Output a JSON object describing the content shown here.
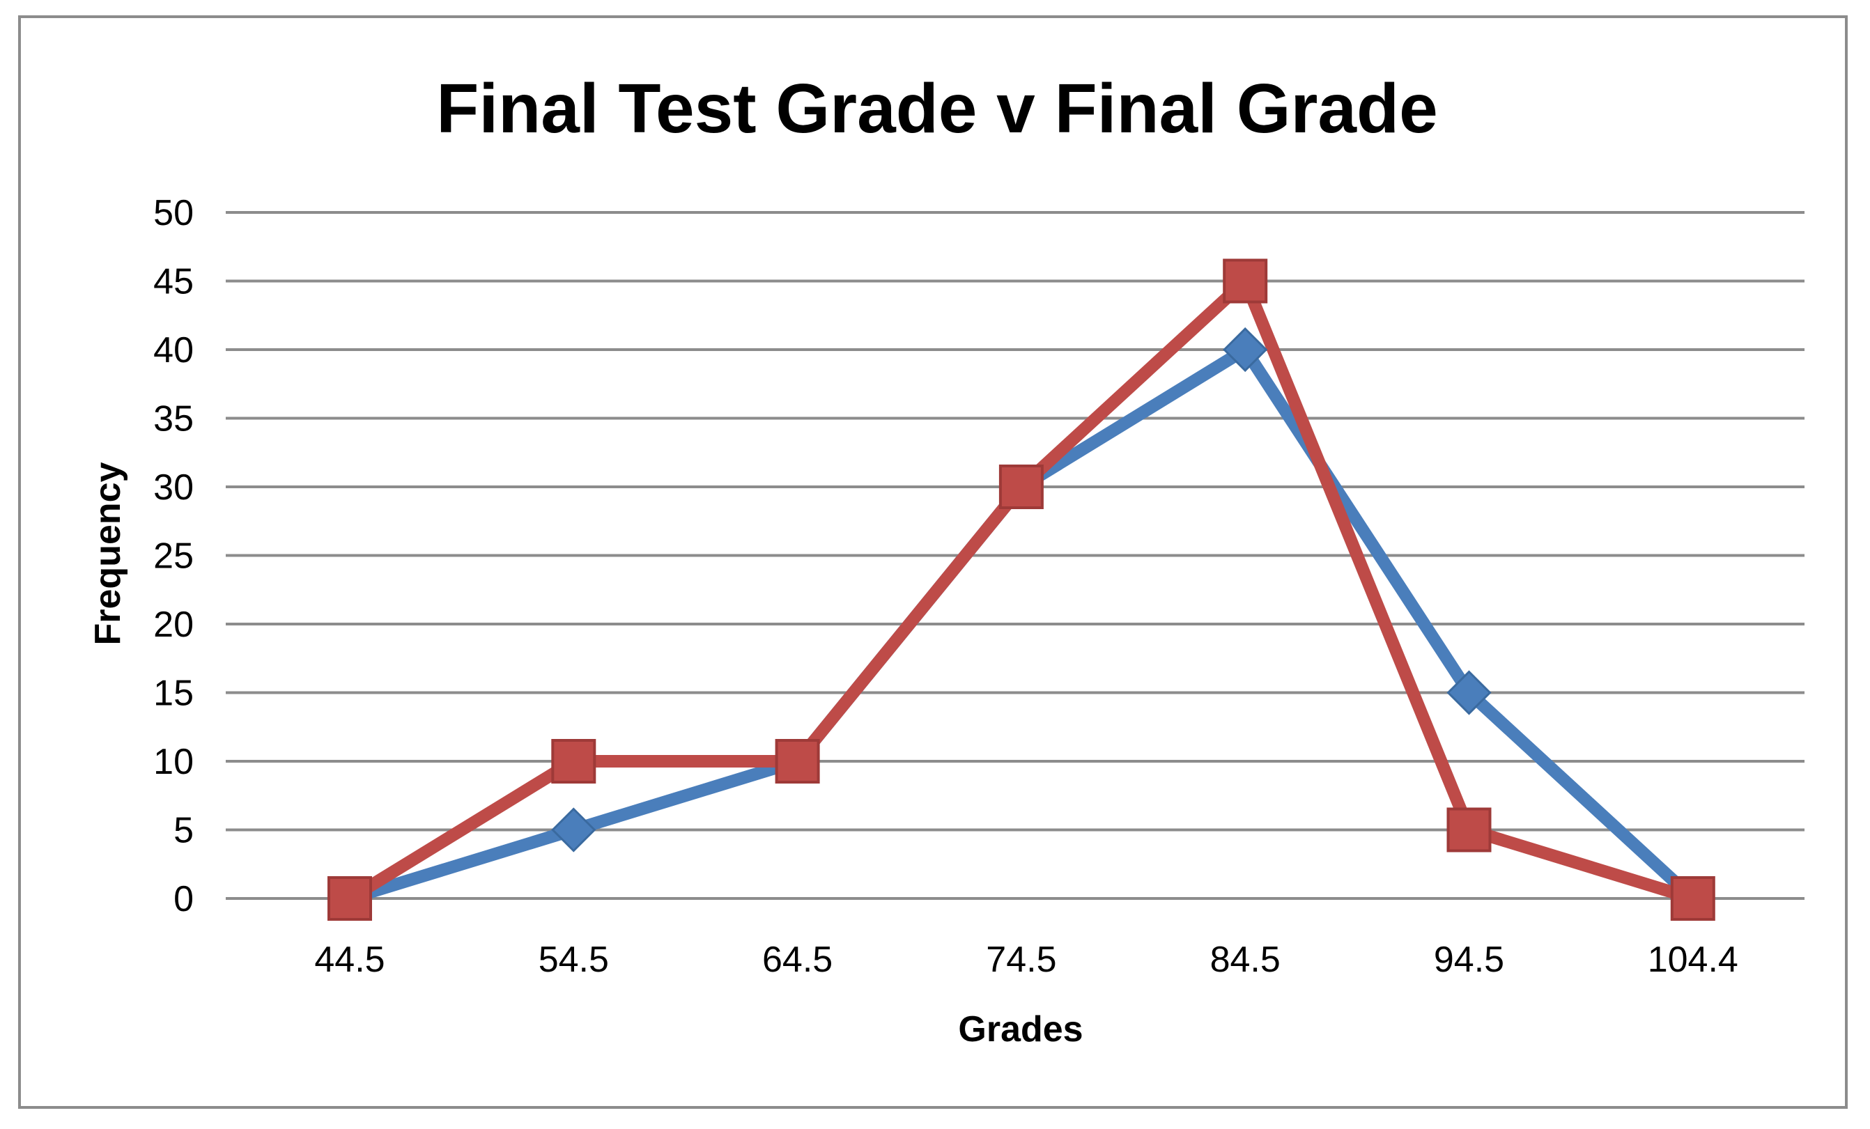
{
  "chart_data": {
    "type": "line",
    "title": "Final Test Grade v Final Grade",
    "xlabel": "Grades",
    "ylabel": "Frequency",
    "categories": [
      "44.5",
      "54.5",
      "64.5",
      "74.5",
      "84.5",
      "94.5",
      "104.4"
    ],
    "ylim": [
      0,
      50
    ],
    "yticks": [
      0,
      5,
      10,
      15,
      20,
      25,
      30,
      35,
      40,
      45,
      50
    ],
    "grid": true,
    "legend": "none",
    "series": [
      {
        "values": [
          0,
          5,
          10,
          30,
          40,
          15,
          0
        ],
        "color": "#4A7EBB",
        "marker": "diamond"
      },
      {
        "values": [
          0,
          10,
          10,
          30,
          45,
          5,
          0
        ],
        "color": "#BE4B48",
        "marker": "square"
      }
    ],
    "colors": {
      "gridline": "#8C8C8C",
      "frame": "#8C8C8C",
      "background": "#FFFFFF"
    }
  }
}
